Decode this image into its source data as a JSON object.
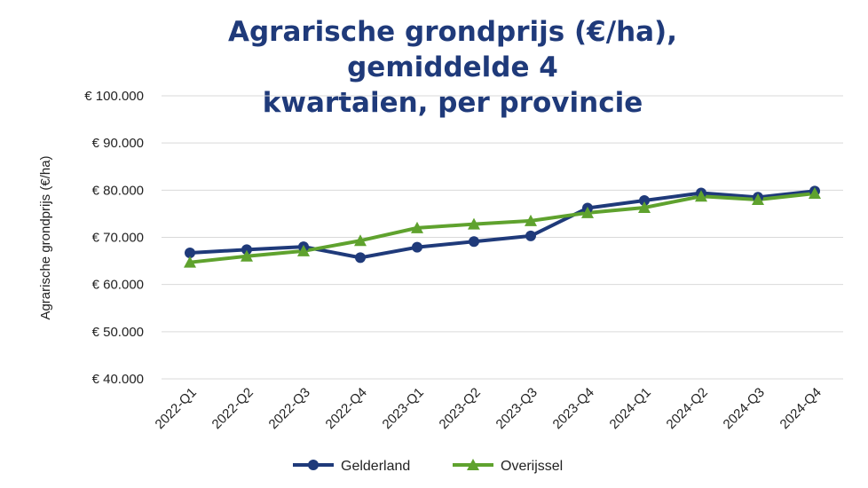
{
  "chart_data": {
    "type": "line",
    "title_lines": [
      "Agrarische grondprijs (€/ha), gemiddelde 4",
      "kwartalen, per provincie"
    ],
    "ylabel": "Agrarische grondprijs (€/ha)",
    "xlabel": "",
    "categories": [
      "2022-Q1",
      "2022-Q2",
      "2022-Q3",
      "2022-Q4",
      "2023-Q1",
      "2023-Q2",
      "2023-Q3",
      "2023-Q4",
      "2024-Q1",
      "2024-Q2",
      "2024-Q3",
      "2024-Q4"
    ],
    "ylim": [
      40000,
      100000
    ],
    "yticks": [
      40000,
      50000,
      60000,
      70000,
      80000,
      90000,
      100000
    ],
    "ytick_labels": [
      "€ 40.000",
      "€ 50.000",
      "€ 60.000",
      "€ 70.000",
      "€ 80.000",
      "€ 90.000",
      "€ 100.000"
    ],
    "grid": "horizontal",
    "legend_position": "bottom",
    "series": [
      {
        "name": "Gelderland",
        "color": "#1f3a7a",
        "marker": "circle",
        "values": [
          66700,
          67400,
          68000,
          65700,
          67900,
          69100,
          70300,
          76200,
          77800,
          79400,
          78500,
          79800
        ]
      },
      {
        "name": "Overijssel",
        "color": "#5fa22e",
        "marker": "triangle",
        "values": [
          64700,
          66000,
          67100,
          69300,
          72000,
          72800,
          73500,
          75200,
          76300,
          78700,
          78000,
          79300
        ]
      }
    ]
  }
}
